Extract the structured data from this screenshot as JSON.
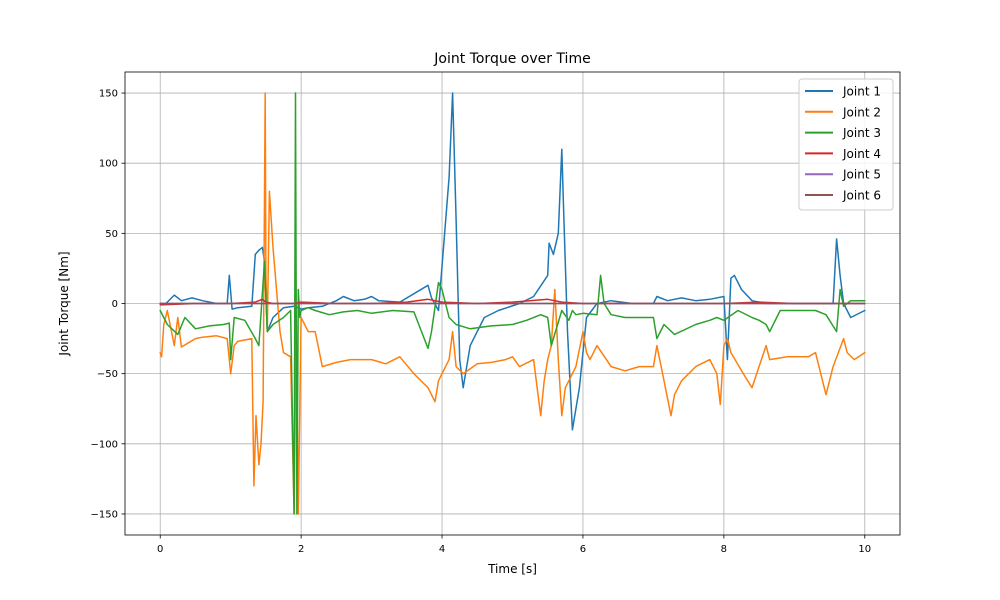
{
  "chart_data": {
    "type": "line",
    "title": "Joint Torque over Time",
    "xlabel": "Time [s]",
    "ylabel": "Joint Torque [Nm]",
    "xlim": [
      -0.5,
      10.5
    ],
    "ylim": [
      -165,
      165
    ],
    "xticks": [
      0,
      2,
      4,
      6,
      8,
      10
    ],
    "yticks": [
      -150,
      -100,
      -50,
      0,
      50,
      100,
      150
    ],
    "grid": true,
    "legend_position": "top-right",
    "series": [
      {
        "name": "Joint 1",
        "color": "#1f77b4",
        "x": [
          0,
          0.08,
          0.2,
          0.3,
          0.45,
          0.6,
          0.8,
          0.95,
          0.98,
          1.02,
          1.1,
          1.3,
          1.35,
          1.4,
          1.45,
          1.48,
          1.52,
          1.6,
          1.75,
          1.9,
          2.0,
          2.1,
          2.3,
          2.5,
          2.6,
          2.75,
          2.9,
          3.0,
          3.1,
          3.4,
          3.8,
          3.85,
          3.95,
          4.1,
          4.15,
          4.2,
          4.25,
          4.3,
          4.4,
          4.6,
          4.8,
          5.1,
          5.3,
          5.5,
          5.52,
          5.58,
          5.65,
          5.7,
          5.73,
          5.78,
          5.85,
          5.95,
          6.05,
          6.2,
          6.4,
          6.7,
          7.0,
          7.05,
          7.2,
          7.4,
          7.6,
          7.8,
          8.0,
          8.05,
          8.1,
          8.15,
          8.25,
          8.4,
          8.6,
          8.8,
          9.0,
          9.3,
          9.55,
          9.6,
          9.65,
          9.7,
          9.8,
          10.0
        ],
        "values": [
          0,
          0,
          6,
          2,
          4,
          2,
          0,
          0,
          20,
          -4,
          -3,
          -2,
          35,
          38,
          40,
          30,
          -20,
          -10,
          -3,
          -2,
          -4,
          -3,
          -2,
          2,
          5,
          2,
          3,
          5,
          2,
          1,
          13,
          4,
          -5,
          90,
          150,
          60,
          -40,
          -60,
          -30,
          -10,
          -5,
          0,
          5,
          20,
          43,
          35,
          50,
          110,
          60,
          -20,
          -90,
          -60,
          -10,
          0,
          2,
          0,
          0,
          5,
          2,
          4,
          2,
          3,
          5,
          -40,
          18,
          20,
          10,
          2,
          0,
          0,
          0,
          0,
          0,
          46,
          20,
          0,
          -10,
          -5
        ]
      },
      {
        "name": "Joint 2",
        "color": "#ff7f0e",
        "x": [
          0,
          0.02,
          0.05,
          0.1,
          0.2,
          0.25,
          0.3,
          0.4,
          0.5,
          0.6,
          0.8,
          0.95,
          1.0,
          1.05,
          1.1,
          1.3,
          1.33,
          1.36,
          1.4,
          1.43,
          1.46,
          1.49,
          1.5,
          1.52,
          1.55,
          1.6,
          1.7,
          1.75,
          1.85,
          1.9,
          1.93,
          1.96,
          2.0,
          2.1,
          2.2,
          2.3,
          2.5,
          2.7,
          3.0,
          3.2,
          3.4,
          3.6,
          3.8,
          3.9,
          3.95,
          4.0,
          4.1,
          4.15,
          4.2,
          4.3,
          4.5,
          4.7,
          4.9,
          5.0,
          5.1,
          5.3,
          5.4,
          5.45,
          5.5,
          5.55,
          5.6,
          5.65,
          5.7,
          5.75,
          5.8,
          5.9,
          6.0,
          6.05,
          6.1,
          6.2,
          6.4,
          6.6,
          6.8,
          7.0,
          7.05,
          7.15,
          7.25,
          7.3,
          7.4,
          7.6,
          7.8,
          7.9,
          7.95,
          8.0,
          8.05,
          8.1,
          8.3,
          8.4,
          8.6,
          8.65,
          8.9,
          9.2,
          9.3,
          9.45,
          9.55,
          9.7,
          9.75,
          9.85,
          10.0
        ],
        "values": [
          -35,
          -38,
          -15,
          -5,
          -30,
          -10,
          -31,
          -28,
          -25,
          -24,
          -23,
          -25,
          -50,
          -30,
          -27,
          -25,
          -130,
          -80,
          -115,
          -100,
          -70,
          150,
          20,
          -20,
          80,
          40,
          -20,
          -35,
          -38,
          -150,
          -5,
          -150,
          -10,
          -20,
          -20,
          -45,
          -42,
          -40,
          -40,
          -43,
          -38,
          -50,
          -60,
          -70,
          -55,
          -50,
          -40,
          -20,
          -45,
          -50,
          -43,
          -42,
          -40,
          -38,
          -45,
          -40,
          -80,
          -55,
          -40,
          -30,
          10,
          -40,
          -80,
          -60,
          -55,
          -45,
          -20,
          -35,
          -40,
          -30,
          -45,
          -48,
          -45,
          -45,
          -30,
          -55,
          -80,
          -65,
          -55,
          -45,
          -40,
          -50,
          -72,
          -30,
          -25,
          -35,
          -52,
          -60,
          -30,
          -40,
          -38,
          -38,
          -35,
          -65,
          -45,
          -25,
          -35,
          -40,
          -35
        ]
      },
      {
        "name": "Joint 3",
        "color": "#2ca02c",
        "x": [
          0,
          0.1,
          0.25,
          0.35,
          0.5,
          0.7,
          0.9,
          0.98,
          1.0,
          1.05,
          1.2,
          1.35,
          1.4,
          1.48,
          1.52,
          1.6,
          1.75,
          1.85,
          1.9,
          1.92,
          1.94,
          1.96,
          1.98,
          2.0,
          2.1,
          2.2,
          2.4,
          2.6,
          2.8,
          3.0,
          3.3,
          3.6,
          3.8,
          3.85,
          3.95,
          4.0,
          4.1,
          4.2,
          4.4,
          4.7,
          5.0,
          5.2,
          5.4,
          5.5,
          5.55,
          5.7,
          5.8,
          5.85,
          5.9,
          6.0,
          6.2,
          6.25,
          6.3,
          6.4,
          6.6,
          7.0,
          7.05,
          7.15,
          7.3,
          7.6,
          7.8,
          7.9,
          8.0,
          8.2,
          8.4,
          8.5,
          8.6,
          8.65,
          8.8,
          9.0,
          9.3,
          9.45,
          9.6,
          9.65,
          9.7,
          9.8,
          10.0
        ],
        "values": [
          -5,
          -15,
          -22,
          -10,
          -18,
          -16,
          -15,
          -14,
          -40,
          -10,
          -12,
          -25,
          -30,
          30,
          -20,
          -15,
          -10,
          -5,
          -150,
          150,
          -150,
          10,
          -10,
          -5,
          -3,
          -5,
          -8,
          -6,
          -5,
          -7,
          -5,
          -6,
          -32,
          -20,
          15,
          10,
          -10,
          -15,
          -18,
          -16,
          -15,
          -12,
          -8,
          -10,
          -30,
          -5,
          -12,
          -5,
          -8,
          -7,
          -8,
          20,
          0,
          -8,
          -10,
          -10,
          -25,
          -15,
          -22,
          -15,
          -12,
          -10,
          -12,
          -5,
          -10,
          -12,
          -15,
          -20,
          -5,
          -5,
          -5,
          -8,
          -20,
          10,
          -2,
          2,
          2
        ]
      },
      {
        "name": "Joint 4",
        "color": "#d62728",
        "x": [
          0,
          0.5,
          1.0,
          1.35,
          1.45,
          1.5,
          1.6,
          1.9,
          2.0,
          2.5,
          3.0,
          3.5,
          3.8,
          3.9,
          4.0,
          4.5,
          5.0,
          5.5,
          5.7,
          6.0,
          6.5,
          7.0,
          7.5,
          8.0,
          8.5,
          9.0,
          9.5,
          10.0
        ],
        "values": [
          -1,
          0,
          0,
          1,
          3,
          1,
          0,
          0,
          1,
          0,
          0,
          1,
          3,
          2,
          1,
          0,
          1,
          3,
          1,
          0,
          0,
          0,
          0,
          0,
          1,
          0,
          0,
          0
        ]
      },
      {
        "name": "Joint 5",
        "color": "#9467bd",
        "x": [
          0,
          2,
          4,
          6,
          8,
          10
        ],
        "values": [
          0,
          0,
          0,
          0,
          0,
          0
        ]
      },
      {
        "name": "Joint 6",
        "color": "#8c564b",
        "x": [
          0,
          2,
          4,
          6,
          8,
          10
        ],
        "values": [
          0,
          0,
          0,
          0,
          0,
          0
        ]
      }
    ]
  }
}
